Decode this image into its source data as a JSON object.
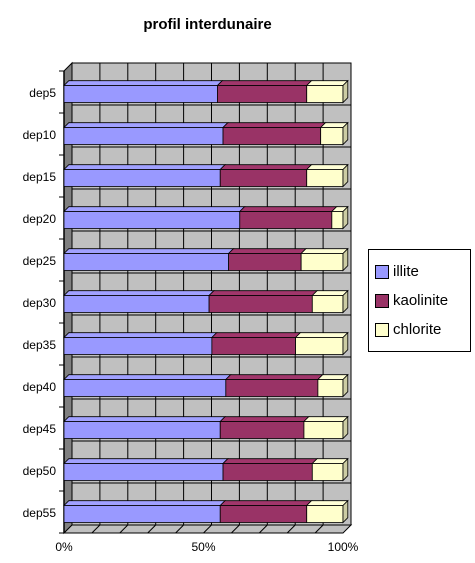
{
  "chart_data": {
    "type": "bar",
    "orientation": "horizontal",
    "stacking": "percent",
    "title": "profil interdunaire",
    "categories": [
      "dep5",
      "dep10",
      "dep15",
      "dep20",
      "dep25",
      "dep30",
      "dep35",
      "dep40",
      "dep45",
      "dep50",
      "dep55"
    ],
    "series": [
      {
        "name": "illite",
        "color": "#9999ff",
        "values": [
          55,
          57,
          56,
          63,
          59,
          52,
          53,
          58,
          56,
          57,
          56
        ]
      },
      {
        "name": "kaolinite",
        "color": "#993366",
        "values": [
          32,
          35,
          31,
          33,
          26,
          37,
          30,
          33,
          30,
          32,
          31
        ]
      },
      {
        "name": "chlorite",
        "color": "#ffffcc",
        "values": [
          13,
          8,
          13,
          4,
          15,
          11,
          17,
          9,
          14,
          11,
          13
        ]
      }
    ],
    "x_ticks": [
      "0%",
      "50%",
      "100%"
    ],
    "xlim": [
      0,
      100
    ],
    "grid": true,
    "legend_position": "right"
  }
}
